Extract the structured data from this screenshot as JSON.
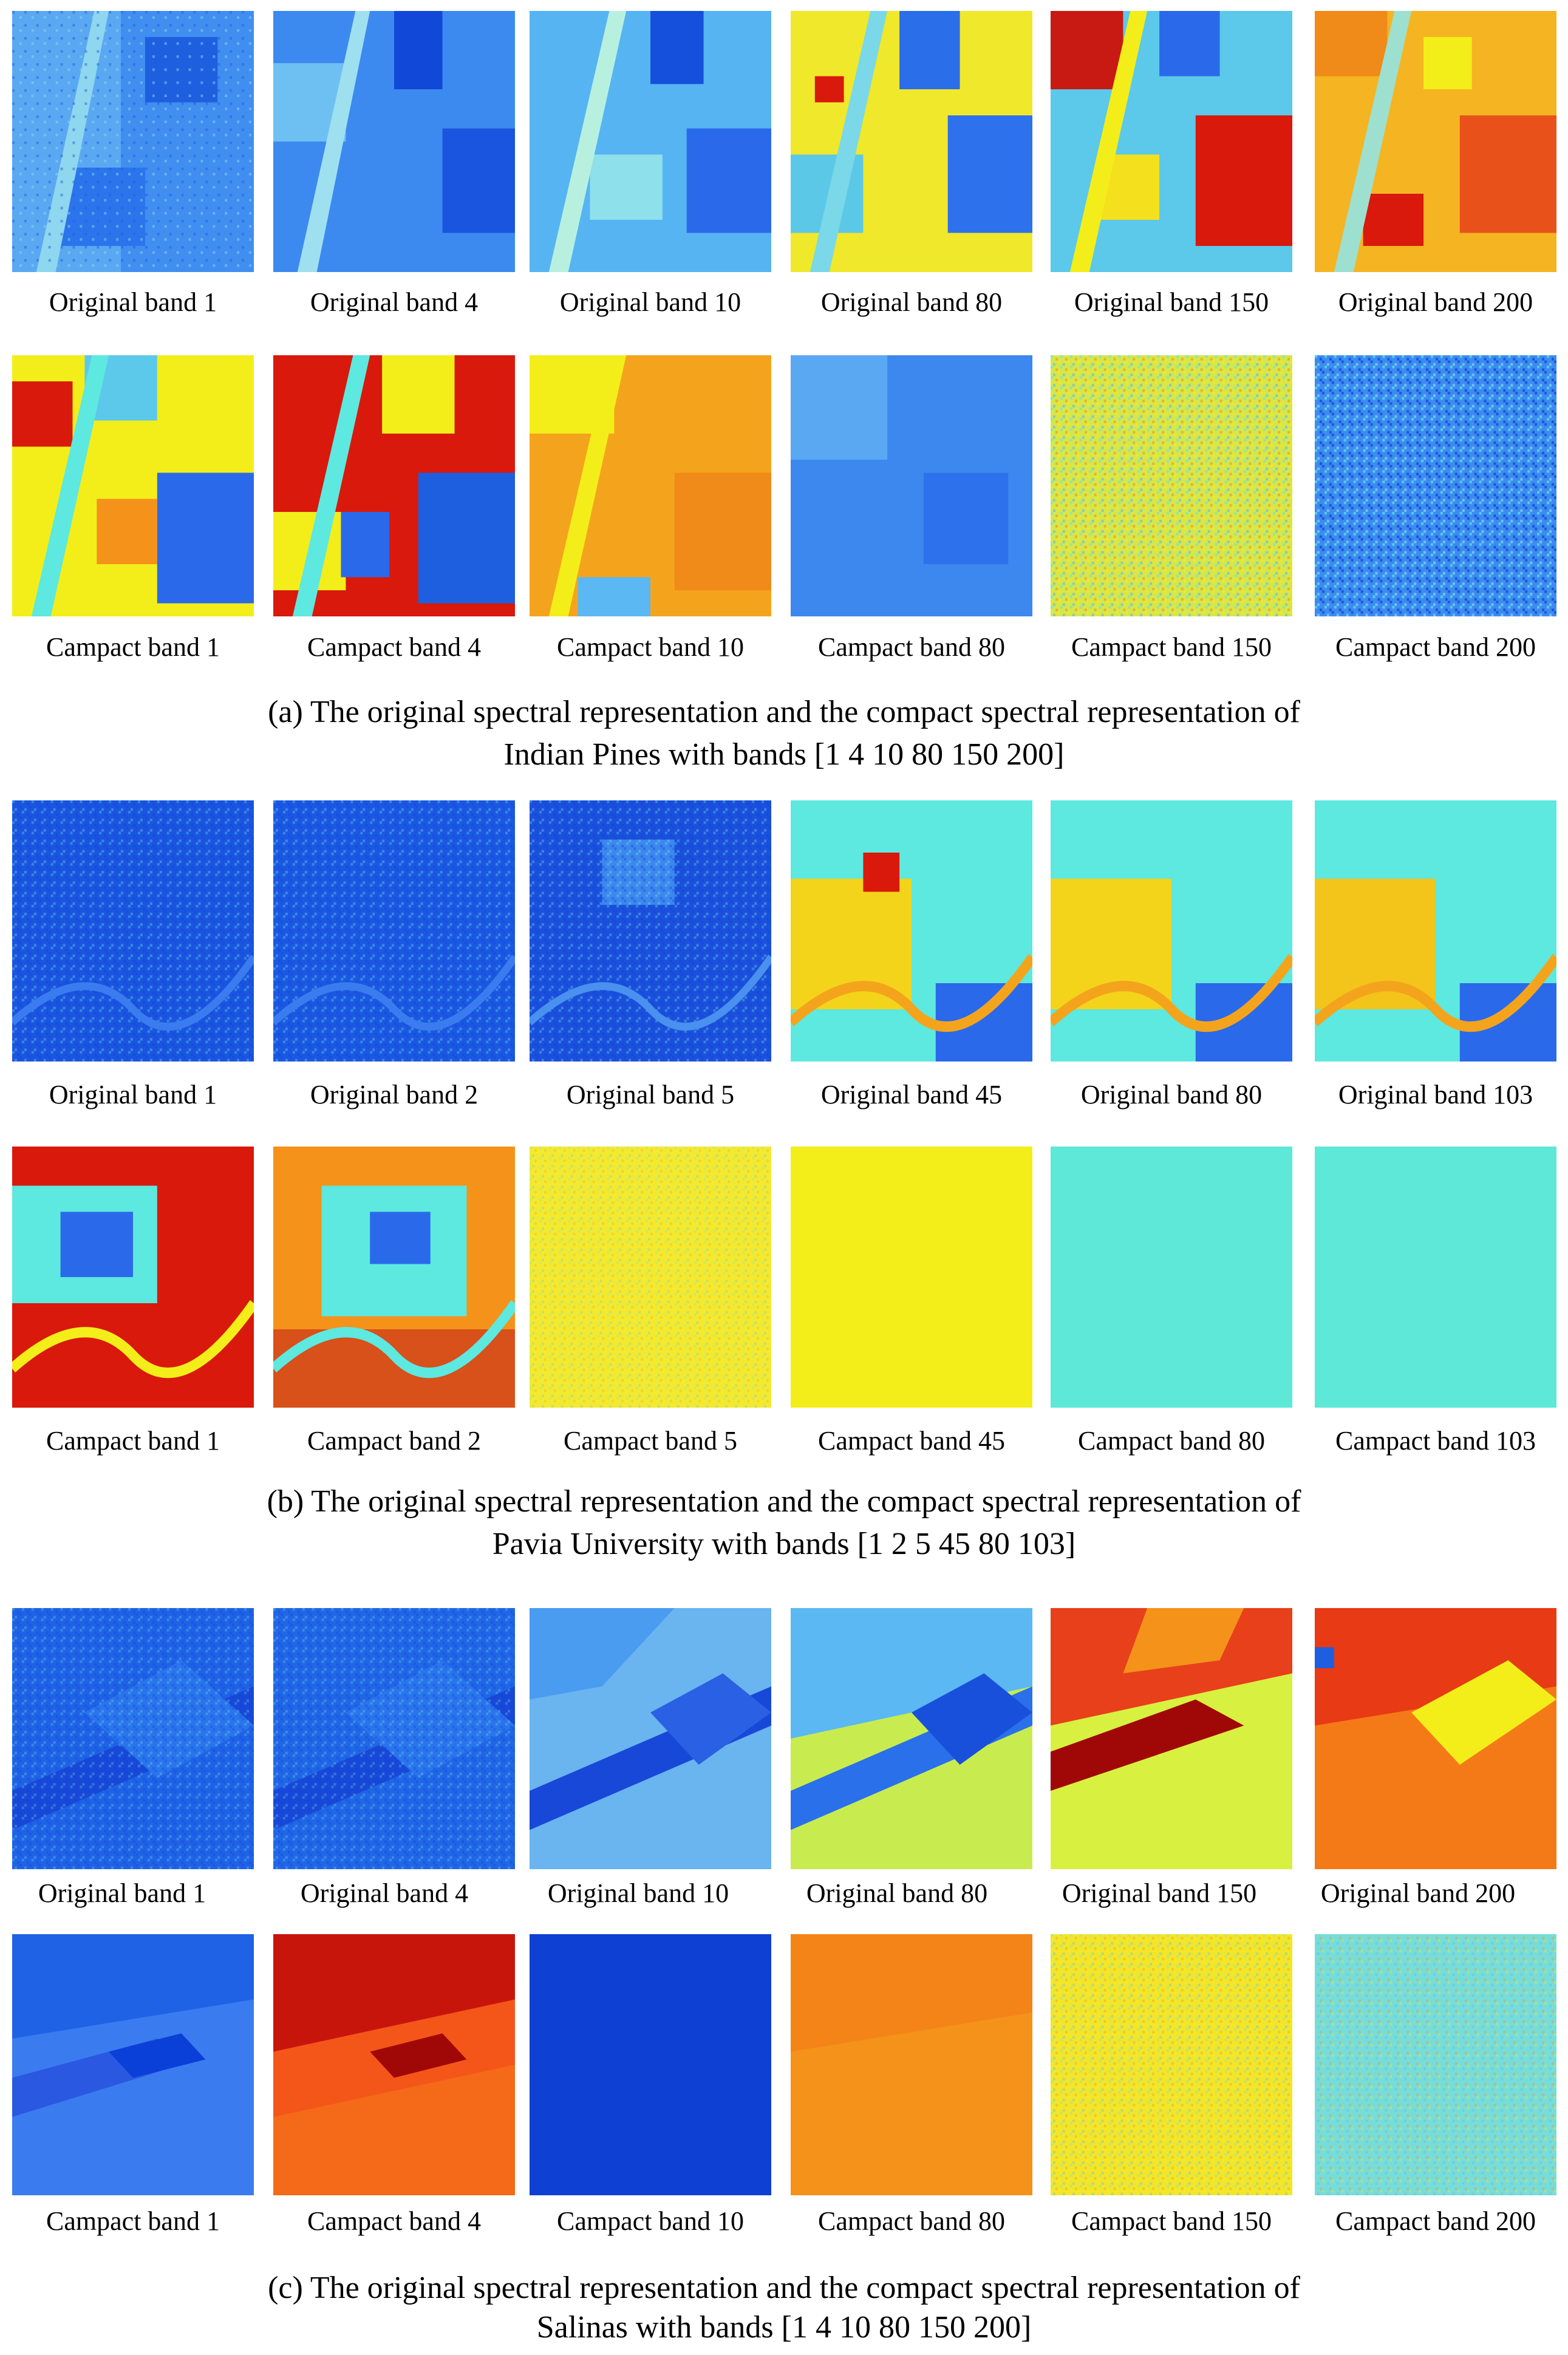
{
  "colors": {
    "deep_blue": "#0a3fd8",
    "blue": "#1f6ef0",
    "light_blue": "#5bb8f2",
    "cyan": "#5de8e0",
    "yellow": "#f3ee1a",
    "orange": "#f4921a",
    "red": "#d8190c",
    "dark_red": "#a00808"
  },
  "figure_a": {
    "original_labels": [
      "Original band 1",
      "Original band 4",
      "Original band 10",
      "Original band 80",
      "Original band 150",
      "Original band 200"
    ],
    "compact_labels": [
      "Campact band 1",
      "Campact band 4",
      "Campact band 10",
      "Campact band 80",
      "Campact band 150",
      "Campact band 200"
    ],
    "caption_line1": "(a)  The original spectral representation  and the compact spectral representation of",
    "caption_line2": "Indian Pines with bands [1 4 10 80 150 200]"
  },
  "figure_b": {
    "original_labels": [
      "Original band 1",
      "Original band 2",
      "Original band 5",
      "Original band 45",
      "Original band 80",
      "Original band 103"
    ],
    "compact_labels": [
      "Campact band 1",
      "Campact band 2",
      "Campact band 5",
      "Campact band 45",
      "Campact band 80",
      "Campact band 103"
    ],
    "caption_line1": "(b)  The original spectral representation and the compact spectral representation of",
    "caption_line2": "Pavia University with bands [1 2 5 45 80 103]"
  },
  "figure_c": {
    "original_labels": [
      "Original band 1",
      "Original band 4",
      "Original band 10",
      "Original band 80",
      "Original band 150",
      "Original band 200"
    ],
    "compact_labels": [
      "Campact band 1",
      "Campact band 4",
      "Campact band 10",
      "Campact band 80",
      "Campact band 150",
      "Campact band 200"
    ],
    "caption_line1": "(c)  The original spectral representation and the compact spectral representation of",
    "caption_line2": "Salinas with bands [1 4 10 80 150 200]"
  }
}
